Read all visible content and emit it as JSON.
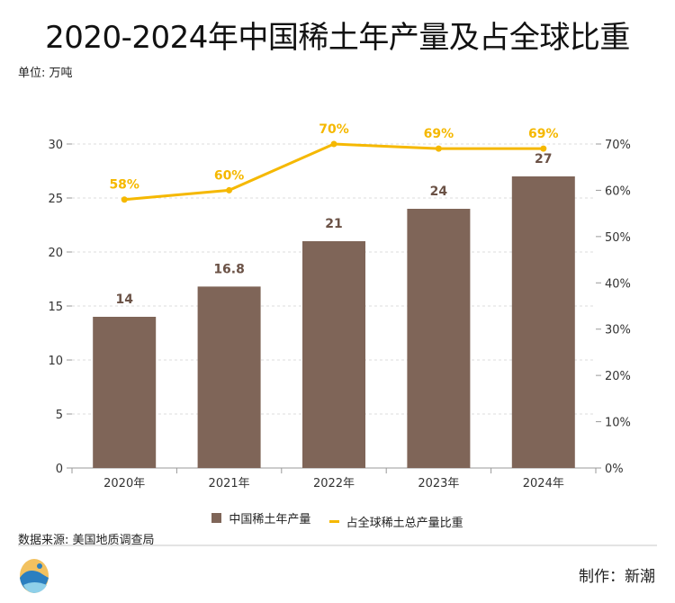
{
  "title": "2020-2024年中国稀土年产量及占全球比重",
  "unit": "单位: 万吨",
  "source": "数据来源: 美国地质调查局",
  "credit": "制作：新潮",
  "chart_data": {
    "type": "bar+line",
    "categories": [
      "2020年",
      "2021年",
      "2022年",
      "2023年",
      "2024年"
    ],
    "series": [
      {
        "name": "中国稀土年产量",
        "type": "bar",
        "axis": "left",
        "values": [
          14,
          16.8,
          21,
          24,
          27
        ],
        "labels": [
          "14",
          "16.8",
          "21",
          "24",
          "27"
        ],
        "color": "#7f6558"
      },
      {
        "name": "占全球稀土总产量比重",
        "type": "line",
        "axis": "right",
        "values": [
          58,
          60,
          70,
          69,
          69
        ],
        "labels": [
          "58%",
          "60%",
          "70%",
          "69%",
          "69%"
        ],
        "color": "#f5b800"
      }
    ],
    "y_left": {
      "range": [
        0,
        30
      ],
      "ticks": [
        "0",
        "5",
        "10",
        "15",
        "20",
        "25",
        "30"
      ]
    },
    "y_right": {
      "range": [
        0,
        70
      ],
      "ticks": [
        "0%",
        "10%",
        "20%",
        "30%",
        "40%",
        "50%",
        "60%",
        "70%"
      ]
    },
    "grid": true,
    "legend": "bottom"
  }
}
